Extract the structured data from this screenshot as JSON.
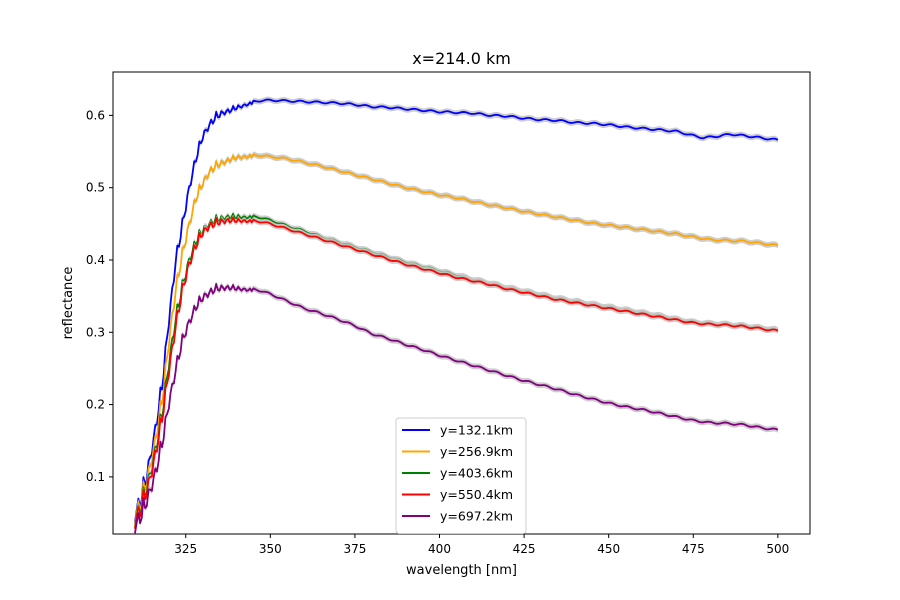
{
  "chart_data": {
    "type": "line",
    "title": "x=214.0 km",
    "xlabel": "wavelength [nm]",
    "ylabel": "reflectance",
    "xlim": [
      303.5,
      509.5
    ],
    "ylim": [
      0.021,
      0.66
    ],
    "xticks": [
      325,
      350,
      375,
      400,
      425,
      450,
      475,
      500
    ],
    "yticks": [
      0.1,
      0.2,
      0.3,
      0.4,
      0.5,
      0.6
    ],
    "grid": false,
    "legend_position": "lower-center",
    "uncertainty_band_color": "#c8c8c8",
    "series": [
      {
        "name": "y=132.1km",
        "color": "#0000ff",
        "points": [
          [
            310,
            0.065
          ],
          [
            312,
            0.09
          ],
          [
            314,
            0.13
          ],
          [
            316,
            0.18
          ],
          [
            318,
            0.24
          ],
          [
            320,
            0.33
          ],
          [
            322,
            0.41
          ],
          [
            324,
            0.46
          ],
          [
            326,
            0.51
          ],
          [
            328,
            0.55
          ],
          [
            330,
            0.58
          ],
          [
            332,
            0.595
          ],
          [
            334,
            0.605
          ],
          [
            336,
            0.61
          ],
          [
            338,
            0.612
          ],
          [
            340,
            0.615
          ],
          [
            343,
            0.618
          ],
          [
            346,
            0.62
          ],
          [
            350,
            0.621
          ],
          [
            355,
            0.62
          ],
          [
            360,
            0.619
          ],
          [
            365,
            0.618
          ],
          [
            370,
            0.617
          ],
          [
            375,
            0.615
          ],
          [
            380,
            0.612
          ],
          [
            385,
            0.611
          ],
          [
            390,
            0.609
          ],
          [
            395,
            0.607
          ],
          [
            400,
            0.605
          ],
          [
            405,
            0.604
          ],
          [
            410,
            0.603
          ],
          [
            415,
            0.6
          ],
          [
            420,
            0.599
          ],
          [
            425,
            0.596
          ],
          [
            430,
            0.594
          ],
          [
            435,
            0.593
          ],
          [
            440,
            0.59
          ],
          [
            445,
            0.589
          ],
          [
            450,
            0.587
          ],
          [
            455,
            0.584
          ],
          [
            460,
            0.582
          ],
          [
            465,
            0.58
          ],
          [
            470,
            0.578
          ],
          [
            475,
            0.572
          ],
          [
            478,
            0.569
          ],
          [
            482,
            0.571
          ],
          [
            486,
            0.574
          ],
          [
            490,
            0.572
          ],
          [
            495,
            0.569
          ],
          [
            500,
            0.566
          ]
        ]
      },
      {
        "name": "y=256.9km",
        "color": "#ffa500",
        "points": [
          [
            310,
            0.062
          ],
          [
            312,
            0.085
          ],
          [
            314,
            0.12
          ],
          [
            316,
            0.165
          ],
          [
            318,
            0.22
          ],
          [
            320,
            0.3
          ],
          [
            322,
            0.37
          ],
          [
            324,
            0.42
          ],
          [
            326,
            0.46
          ],
          [
            328,
            0.495
          ],
          [
            330,
            0.515
          ],
          [
            332,
            0.53
          ],
          [
            334,
            0.537
          ],
          [
            336,
            0.541
          ],
          [
            338,
            0.544
          ],
          [
            340,
            0.546
          ],
          [
            343,
            0.546
          ],
          [
            346,
            0.545
          ],
          [
            350,
            0.543
          ],
          [
            355,
            0.54
          ],
          [
            360,
            0.535
          ],
          [
            365,
            0.53
          ],
          [
            370,
            0.524
          ],
          [
            375,
            0.518
          ],
          [
            380,
            0.512
          ],
          [
            385,
            0.506
          ],
          [
            390,
            0.5
          ],
          [
            395,
            0.495
          ],
          [
            400,
            0.49
          ],
          [
            405,
            0.486
          ],
          [
            410,
            0.481
          ],
          [
            415,
            0.476
          ],
          [
            420,
            0.472
          ],
          [
            425,
            0.467
          ],
          [
            430,
            0.463
          ],
          [
            435,
            0.459
          ],
          [
            440,
            0.455
          ],
          [
            445,
            0.451
          ],
          [
            450,
            0.448
          ],
          [
            455,
            0.445
          ],
          [
            460,
            0.442
          ],
          [
            465,
            0.439
          ],
          [
            470,
            0.436
          ],
          [
            475,
            0.432
          ],
          [
            480,
            0.428
          ],
          [
            485,
            0.427
          ],
          [
            490,
            0.426
          ],
          [
            495,
            0.423
          ],
          [
            500,
            0.42
          ]
        ]
      },
      {
        "name": "y=403.6km",
        "color": "#008000",
        "points": [
          [
            310,
            0.058
          ],
          [
            312,
            0.078
          ],
          [
            314,
            0.11
          ],
          [
            316,
            0.15
          ],
          [
            318,
            0.2
          ],
          [
            320,
            0.27
          ],
          [
            322,
            0.33
          ],
          [
            324,
            0.375
          ],
          [
            326,
            0.41
          ],
          [
            328,
            0.435
          ],
          [
            330,
            0.45
          ],
          [
            332,
            0.458
          ],
          [
            334,
            0.462
          ],
          [
            336,
            0.464
          ],
          [
            338,
            0.465
          ],
          [
            340,
            0.464
          ],
          [
            343,
            0.462
          ],
          [
            346,
            0.46
          ],
          [
            350,
            0.455
          ],
          [
            355,
            0.447
          ],
          [
            360,
            0.44
          ],
          [
            365,
            0.432
          ],
          [
            370,
            0.425
          ],
          [
            375,
            0.418
          ],
          [
            380,
            0.411
          ],
          [
            385,
            0.404
          ],
          [
            390,
            0.397
          ],
          [
            395,
            0.391
          ],
          [
            400,
            0.385
          ],
          [
            405,
            0.379
          ],
          [
            410,
            0.373
          ],
          [
            415,
            0.368
          ],
          [
            420,
            0.362
          ],
          [
            425,
            0.357
          ],
          [
            430,
            0.352
          ],
          [
            435,
            0.347
          ],
          [
            440,
            0.343
          ],
          [
            445,
            0.339
          ],
          [
            450,
            0.335
          ],
          [
            455,
            0.331
          ],
          [
            460,
            0.327
          ],
          [
            465,
            0.323
          ],
          [
            470,
            0.318
          ],
          [
            475,
            0.314
          ],
          [
            480,
            0.312
          ],
          [
            485,
            0.311
          ],
          [
            490,
            0.309
          ],
          [
            495,
            0.306
          ],
          [
            500,
            0.303
          ]
        ]
      },
      {
        "name": "y=550.4km",
        "color": "#ff0000",
        "points": [
          [
            310,
            0.056
          ],
          [
            312,
            0.075
          ],
          [
            314,
            0.105
          ],
          [
            316,
            0.145
          ],
          [
            318,
            0.195
          ],
          [
            320,
            0.26
          ],
          [
            322,
            0.32
          ],
          [
            324,
            0.37
          ],
          [
            326,
            0.405
          ],
          [
            328,
            0.43
          ],
          [
            330,
            0.447
          ],
          [
            332,
            0.455
          ],
          [
            334,
            0.458
          ],
          [
            336,
            0.46
          ],
          [
            338,
            0.46
          ],
          [
            340,
            0.459
          ],
          [
            343,
            0.457
          ],
          [
            346,
            0.454
          ],
          [
            350,
            0.45
          ],
          [
            355,
            0.443
          ],
          [
            360,
            0.436
          ],
          [
            365,
            0.429
          ],
          [
            370,
            0.422
          ],
          [
            375,
            0.415
          ],
          [
            380,
            0.408
          ],
          [
            385,
            0.401
          ],
          [
            390,
            0.394
          ],
          [
            395,
            0.388
          ],
          [
            400,
            0.382
          ],
          [
            405,
            0.376
          ],
          [
            410,
            0.371
          ],
          [
            415,
            0.366
          ],
          [
            420,
            0.36
          ],
          [
            425,
            0.355
          ],
          [
            430,
            0.35
          ],
          [
            435,
            0.345
          ],
          [
            440,
            0.341
          ],
          [
            445,
            0.337
          ],
          [
            450,
            0.333
          ],
          [
            455,
            0.329
          ],
          [
            460,
            0.325
          ],
          [
            465,
            0.321
          ],
          [
            470,
            0.317
          ],
          [
            475,
            0.313
          ],
          [
            480,
            0.311
          ],
          [
            485,
            0.31
          ],
          [
            490,
            0.308
          ],
          [
            495,
            0.305
          ],
          [
            500,
            0.302
          ]
        ]
      },
      {
        "name": "y=697.2km",
        "color": "#800080",
        "points": [
          [
            310,
            0.05
          ],
          [
            312,
            0.065
          ],
          [
            314,
            0.09
          ],
          [
            316,
            0.12
          ],
          [
            318,
            0.16
          ],
          [
            320,
            0.215
          ],
          [
            322,
            0.26
          ],
          [
            324,
            0.3
          ],
          [
            326,
            0.325
          ],
          [
            328,
            0.345
          ],
          [
            330,
            0.357
          ],
          [
            332,
            0.363
          ],
          [
            334,
            0.367
          ],
          [
            336,
            0.368
          ],
          [
            338,
            0.367
          ],
          [
            340,
            0.365
          ],
          [
            343,
            0.362
          ],
          [
            346,
            0.359
          ],
          [
            350,
            0.353
          ],
          [
            355,
            0.343
          ],
          [
            360,
            0.333
          ],
          [
            365,
            0.326
          ],
          [
            370,
            0.318
          ],
          [
            375,
            0.309
          ],
          [
            380,
            0.298
          ],
          [
            385,
            0.291
          ],
          [
            390,
            0.283
          ],
          [
            395,
            0.276
          ],
          [
            400,
            0.268
          ],
          [
            405,
            0.261
          ],
          [
            410,
            0.254
          ],
          [
            415,
            0.247
          ],
          [
            420,
            0.24
          ],
          [
            425,
            0.233
          ],
          [
            430,
            0.227
          ],
          [
            435,
            0.221
          ],
          [
            440,
            0.214
          ],
          [
            445,
            0.208
          ],
          [
            450,
            0.202
          ],
          [
            455,
            0.197
          ],
          [
            460,
            0.193
          ],
          [
            465,
            0.188
          ],
          [
            470,
            0.183
          ],
          [
            475,
            0.178
          ],
          [
            480,
            0.175
          ],
          [
            485,
            0.174
          ],
          [
            490,
            0.172
          ],
          [
            495,
            0.168
          ],
          [
            500,
            0.165
          ]
        ]
      }
    ]
  }
}
